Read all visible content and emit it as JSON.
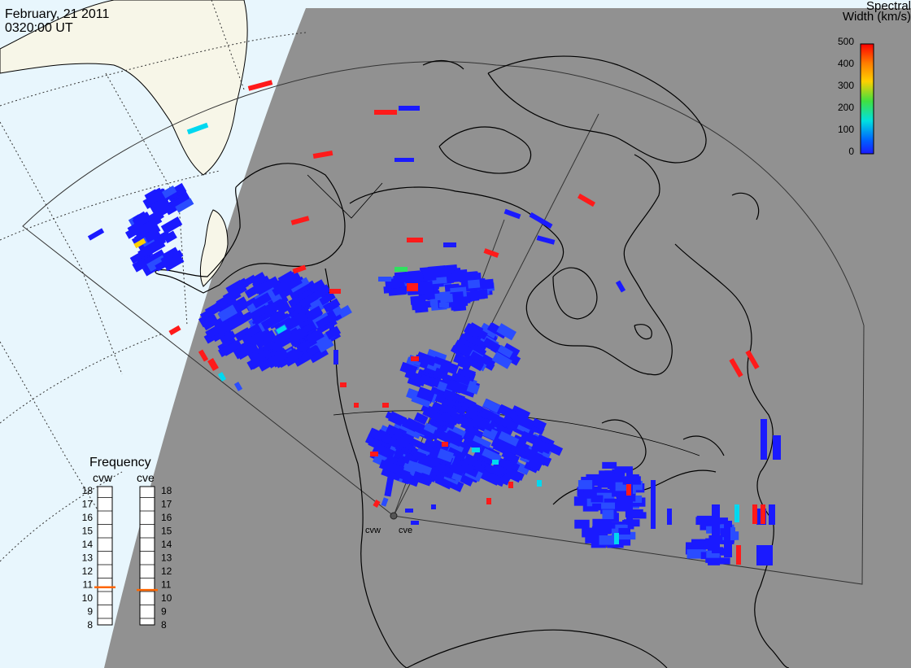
{
  "title": {
    "date": "February, 21 2011",
    "time": "0320:00 UT"
  },
  "colorbar": {
    "title_line1": "Spectral",
    "title_line2": "Width (km/s)",
    "ticks": [
      "500",
      "400",
      "300",
      "200",
      "100",
      "0"
    ],
    "colors": [
      "#ff0000",
      "#ff8000",
      "#ffd000",
      "#40e040",
      "#00e0e0",
      "#0060ff",
      "#1a1aff"
    ]
  },
  "frequency_panel": {
    "title": "Frequency",
    "radars": [
      "cvw",
      "cve"
    ],
    "ticks": [
      "18",
      "17",
      "16",
      "15",
      "14",
      "13",
      "12",
      "11",
      "10",
      "9",
      "8"
    ],
    "cvw_value_mhz": 10.8,
    "cve_value_mhz": 10.6,
    "marker_color": "#ff6600"
  },
  "map": {
    "sunlit_color": "#e8f6fd",
    "night_color": "#919191",
    "land_light_color": "#f7f6e8",
    "radar_sites": [
      "cvw",
      "cve"
    ]
  },
  "colors": {
    "low": "#1a1aff",
    "low2": "#2a4cff",
    "mid": "#00d8f0",
    "green": "#30e060",
    "yellow": "#ffd000",
    "high": "#ff1a1a"
  }
}
